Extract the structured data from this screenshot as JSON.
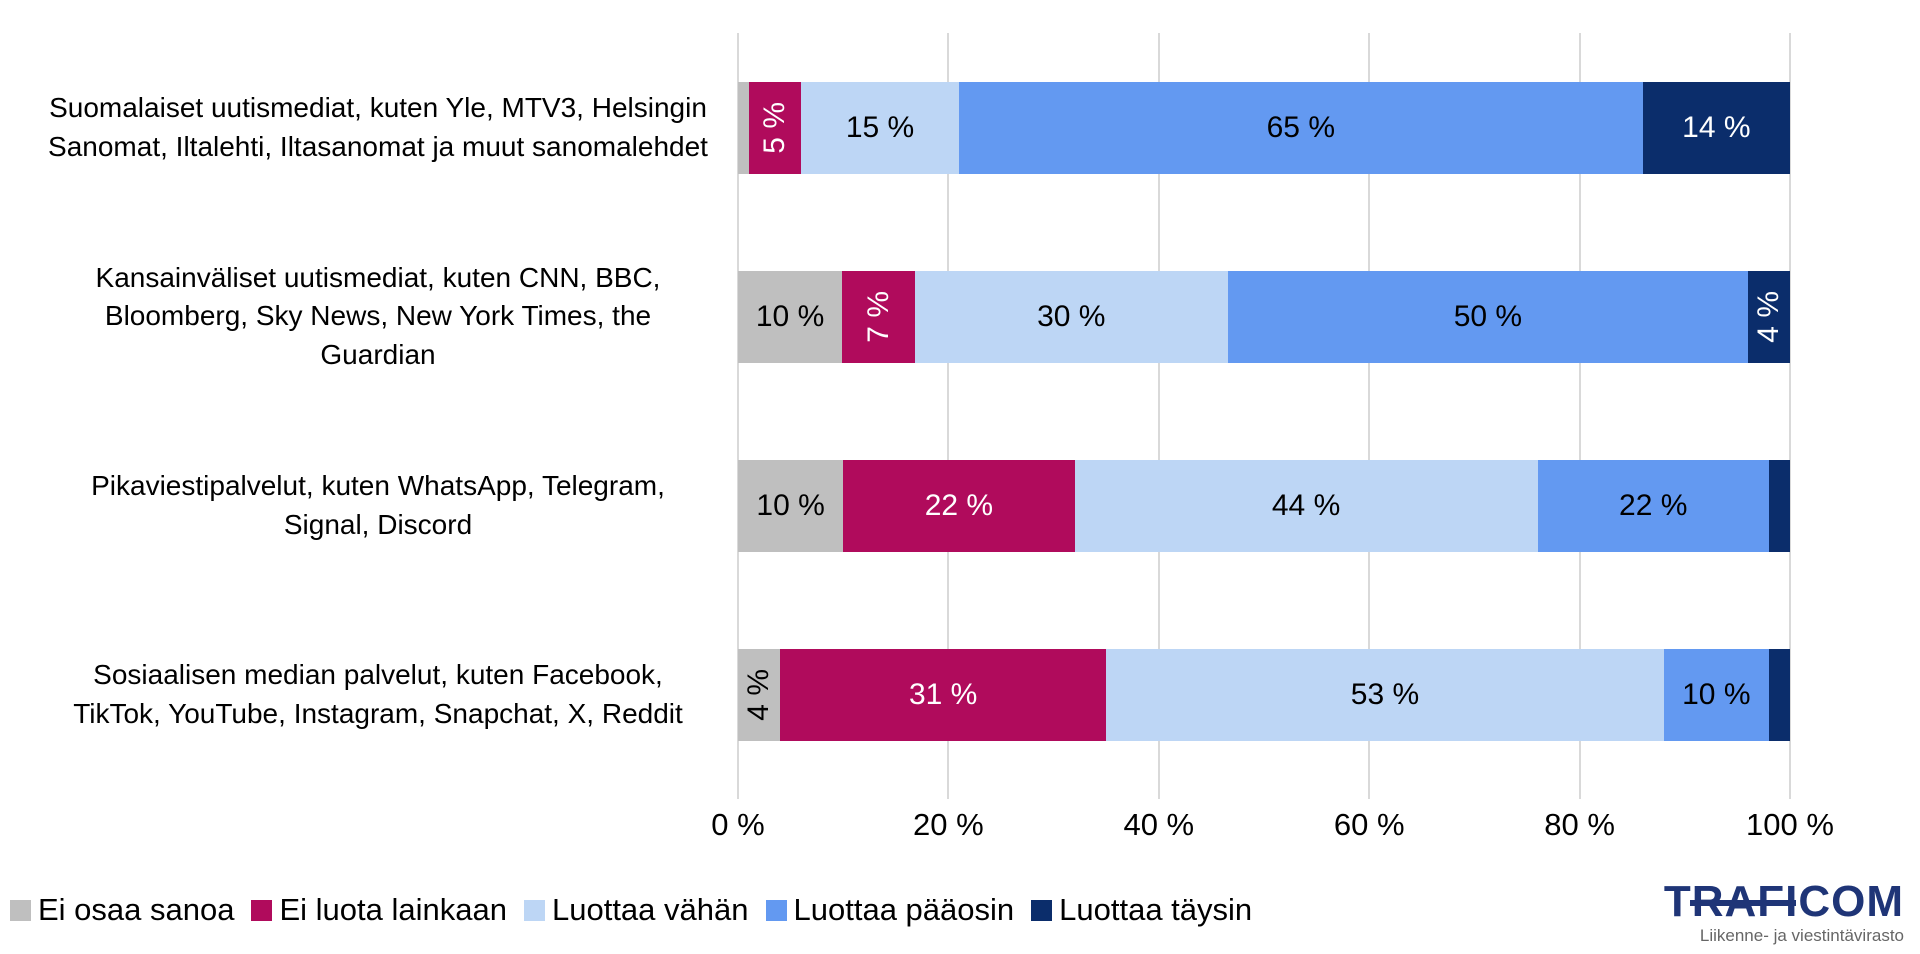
{
  "chart_data": {
    "type": "bar",
    "variant": "horizontal-stacked",
    "categories": [
      "Suomalaiset uutismediat, kuten Yle, MTV3, Helsingin Sanomat, Iltalehti, Iltasanomat ja muut sanomalehdet",
      "Kansainväliset uutismediat, kuten CNN, BBC, Bloomberg, Sky News, New York Times, the Guardian",
      "Pikaviestipalvelut, kuten WhatsApp, Telegram, Signal, Discord",
      "Sosiaalisen median palvelut, kuten Facebook, TikTok, YouTube, Instagram, Snapchat, X, Reddit"
    ],
    "series": [
      {
        "name": "Ei osaa sanoa",
        "color": "#BFBFBF",
        "text_color": "#000000",
        "values": [
          1,
          10,
          10,
          4
        ],
        "labels": [
          "",
          "10 %",
          "10 %",
          "4 %"
        ],
        "rotated": [
          false,
          false,
          false,
          true
        ]
      },
      {
        "name": "Ei luota lainkaan",
        "color": "#B00B5C",
        "text_color": "#FFFFFF",
        "values": [
          5,
          7,
          22,
          31
        ],
        "labels": [
          "5 %",
          "7 %",
          "22 %",
          "31 %"
        ],
        "rotated": [
          true,
          true,
          false,
          false
        ]
      },
      {
        "name": "Luottaa vähän",
        "color": "#BDD6F5",
        "text_color": "#000000",
        "values": [
          15,
          30,
          44,
          53
        ],
        "labels": [
          "15 %",
          "30 %",
          "44 %",
          "53 %"
        ],
        "rotated": [
          false,
          false,
          false,
          false
        ]
      },
      {
        "name": "Luottaa pääosin",
        "color": "#6399F1",
        "text_color": "#000000",
        "values": [
          65,
          50,
          22,
          10
        ],
        "labels": [
          "65 %",
          "50 %",
          "22 %",
          "10 %"
        ],
        "rotated": [
          false,
          false,
          false,
          false
        ]
      },
      {
        "name": "Luottaa täysin",
        "color": "#0B2D6B",
        "text_color": "#FFFFFF",
        "values": [
          14,
          4,
          2,
          2
        ],
        "labels": [
          "14 %",
          "4 %",
          "",
          ""
        ],
        "rotated": [
          false,
          true,
          false,
          false
        ]
      }
    ],
    "xticks": [
      "0 %",
      "20 %",
      "40 %",
      "60 %",
      "80 %",
      "100 %"
    ],
    "xlim": [
      0,
      100
    ],
    "grid": true,
    "gridline_color": "#D9D9D9",
    "legend_position": "bottom-left"
  },
  "logo": {
    "text": "TRAFICOM",
    "tagline": "Liikenne- ja viestintävirasto",
    "color": "#1F3577",
    "tagline_color": "#666666"
  }
}
